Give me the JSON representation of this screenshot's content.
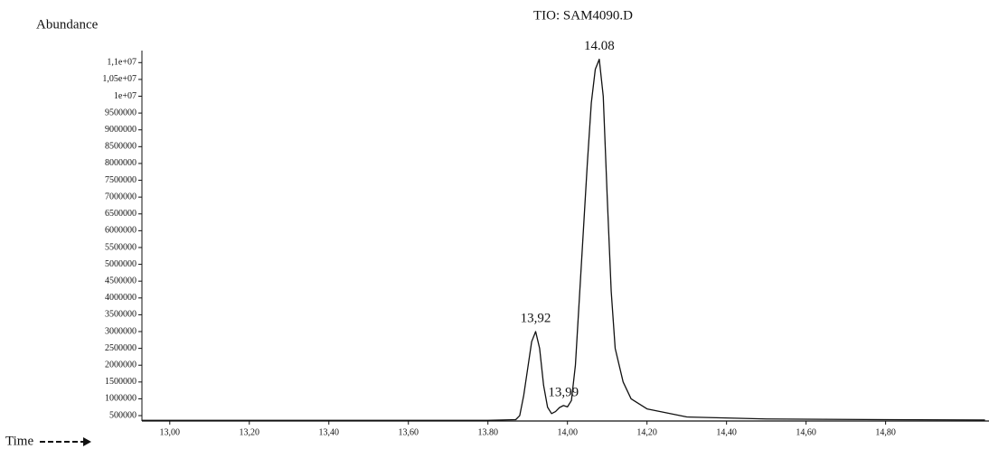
{
  "chart_data": {
    "type": "line",
    "title": "TIO: SAM4090.D",
    "y_label": "Abundance",
    "x_label": "Time",
    "x": [
      12.93,
      13.2,
      13.5,
      13.8,
      13.87,
      13.88,
      13.89,
      13.9,
      13.91,
      13.92,
      13.93,
      13.94,
      13.95,
      13.96,
      13.97,
      13.98,
      13.99,
      14.0,
      14.01,
      14.02,
      14.03,
      14.04,
      14.05,
      14.06,
      14.07,
      14.08,
      14.09,
      14.1,
      14.11,
      14.12,
      14.14,
      14.16,
      14.2,
      14.3,
      14.5,
      14.8,
      15.05
    ],
    "series": [
      {
        "color": "#111111",
        "values": [
          360000,
          360000,
          360000,
          360000,
          380000,
          500000,
          1100000,
          1900000,
          2700000,
          3000000,
          2500000,
          1400000,
          750000,
          560000,
          620000,
          740000,
          800000,
          760000,
          950000,
          2000000,
          4000000,
          6000000,
          8000000,
          9800000,
          10800000,
          11100000,
          10000000,
          7000000,
          4200000,
          2500000,
          1500000,
          1000000,
          700000,
          460000,
          400000,
          380000,
          370000
        ]
      }
    ],
    "annotations": [
      {
        "text": "13,92",
        "x": 13.92,
        "y": 3000000
      },
      {
        "text": "13,99",
        "x": 13.99,
        "y": 800000
      },
      {
        "text": "14.08",
        "x": 14.08,
        "y": 11100000
      }
    ],
    "xlim": [
      12.93,
      15.06
    ],
    "ylim": [
      340000,
      11250000
    ],
    "xticks": [
      {
        "value": 13.0,
        "label": "13,00"
      },
      {
        "value": 13.2,
        "label": "13,20"
      },
      {
        "value": 13.4,
        "label": "13,40"
      },
      {
        "value": 13.6,
        "label": "13,60"
      },
      {
        "value": 13.8,
        "label": "13.80"
      },
      {
        "value": 14.0,
        "label": "14,00"
      },
      {
        "value": 14.2,
        "label": "14,20"
      },
      {
        "value": 14.4,
        "label": "14,40"
      },
      {
        "value": 14.6,
        "label": "14,60"
      },
      {
        "value": 14.8,
        "label": "14,80"
      }
    ],
    "yticks": [
      500000,
      1000000,
      1500000,
      2000000,
      2500000,
      3000000,
      3500000,
      4000000,
      4500000,
      5000000,
      5500000,
      6000000,
      6500000,
      7000000,
      7500000,
      8000000,
      8500000,
      9000000,
      9500000,
      {
        "value": 10000000,
        "label": "1e+07"
      },
      {
        "value": 10500000,
        "label": "1,05e+07"
      },
      {
        "value": 11000000,
        "label": "1,1e+07"
      }
    ],
    "grid": false
  }
}
